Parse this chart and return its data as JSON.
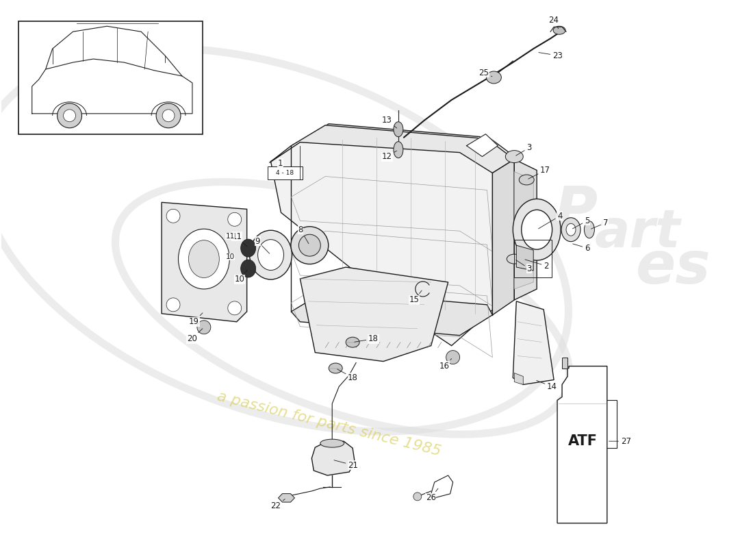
{
  "bg_color": "#ffffff",
  "line_color": "#1a1a1a",
  "watermark1": "euroPart",
  "watermark2": "es",
  "watermark_slogan": "a passion for parts since 1985",
  "wm_color1": "#cccccc",
  "wm_color2": "#d4c84a",
  "figsize": [
    11.0,
    8.0
  ],
  "dpi": 100,
  "xlim": [
    0,
    11
  ],
  "ylim": [
    0,
    8
  ]
}
